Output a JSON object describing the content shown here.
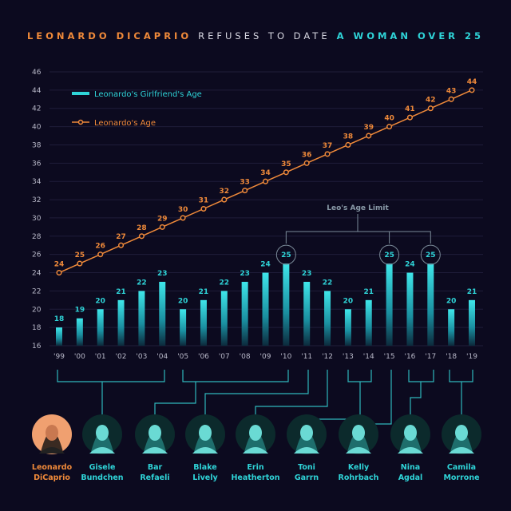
{
  "title": {
    "part1": "LEONARDO DICAPRIO",
    "part2": "REFUSES TO DATE",
    "part3": "A WOMAN OVER 25"
  },
  "colors": {
    "orange": "#f08a3a",
    "cyan": "#2fd4d8",
    "background": "#0c0a1f",
    "grid": "#1f1d3a"
  },
  "chart_data": {
    "type": "bar+line",
    "categories": [
      "'99",
      "'00",
      "'01",
      "'02",
      "'03",
      "'04",
      "'05",
      "'06",
      "'07",
      "'08",
      "'09",
      "'10",
      "'11",
      "'12",
      "'13",
      "'14",
      "'15",
      "'16",
      "'17",
      "'18",
      "'19"
    ],
    "series": [
      {
        "name": "Leonardo's Girlfriend's Age",
        "type": "bar",
        "values": [
          18,
          19,
          20,
          21,
          22,
          23,
          20,
          21,
          22,
          23,
          24,
          25,
          23,
          22,
          20,
          21,
          25,
          24,
          25,
          20,
          21
        ]
      },
      {
        "name": "Leonardo's Age",
        "type": "line",
        "values": [
          24,
          25,
          26,
          27,
          28,
          29,
          30,
          31,
          32,
          33,
          34,
          35,
          36,
          37,
          38,
          39,
          40,
          41,
          42,
          43,
          44
        ]
      }
    ],
    "ylim": [
      16,
      46
    ],
    "yticks": [
      16,
      18,
      20,
      22,
      24,
      26,
      28,
      30,
      32,
      34,
      36,
      38,
      40,
      42,
      44,
      46
    ],
    "legend": "top-left",
    "annotation": {
      "text": "Leo's Age Limit",
      "years": [
        "'10",
        "'15",
        "'17"
      ]
    },
    "grid": true
  },
  "people": [
    {
      "first": "Leonardo",
      "last": "DiCaprio",
      "lead": true
    },
    {
      "first": "Gisele",
      "last": "Bundchen"
    },
    {
      "first": "Bar",
      "last": "Refaeli"
    },
    {
      "first": "Blake",
      "last": "Lively"
    },
    {
      "first": "Erin",
      "last": "Heatherton"
    },
    {
      "first": "Toni",
      "last": "Garrn"
    },
    {
      "first": "Kelly",
      "last": "Rohrbach"
    },
    {
      "first": "Nina",
      "last": "Agdal"
    },
    {
      "first": "Camila",
      "last": "Morrone"
    }
  ]
}
